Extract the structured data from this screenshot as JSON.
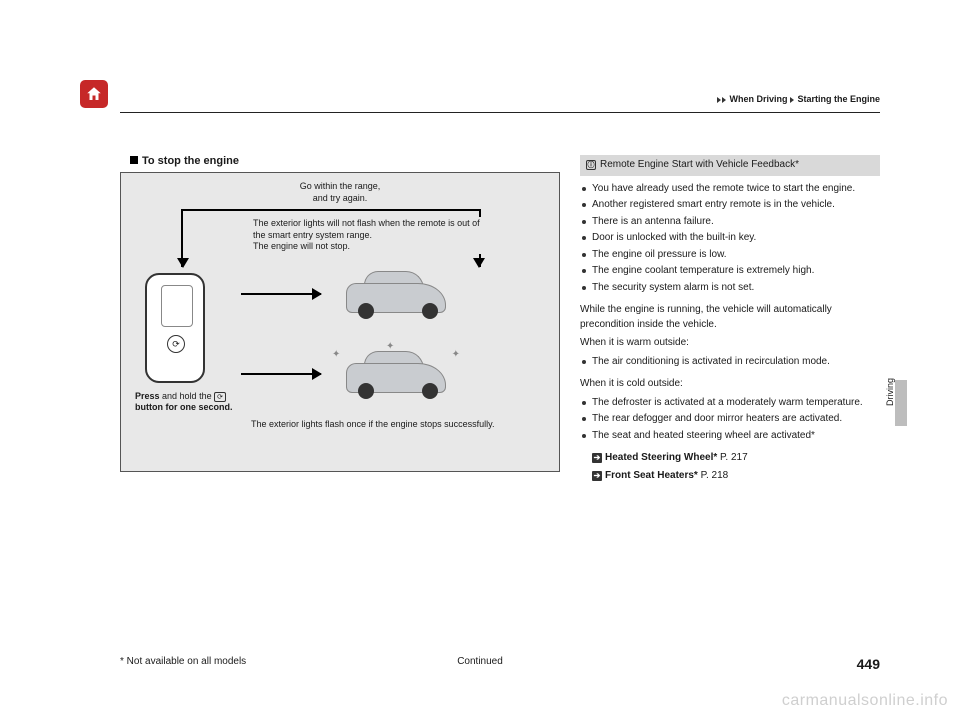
{
  "breadcrumb": {
    "seg1": "When Driving",
    "seg2": "Starting the Engine"
  },
  "section": {
    "title": "To stop the engine"
  },
  "diagram": {
    "top_label_l1": "Go within the range,",
    "top_label_l2": "and try again.",
    "mid_label_l1": "The exterior lights will not flash when the remote is out of",
    "mid_label_l2": "the smart entry system range.",
    "mid_label_l3": "The engine will not stop.",
    "press_l1": "Press",
    "press_l2": " and hold the ",
    "press_l3": " button for one second.",
    "bottom_label": "The exterior lights flash once if the engine stops successfully.",
    "bg_color": "#e8e8e8"
  },
  "info": {
    "head_icon": "ⓘ",
    "head_text": "Remote Engine Start with Vehicle Feedback*",
    "bullets_a": [
      "You have already used the remote twice to start the engine.",
      "Another registered smart entry remote is in the vehicle.",
      "There is an antenna failure.",
      "Door is unlocked with the built-in key.",
      "The engine oil pressure is low.",
      "The engine coolant temperature is extremely high.",
      "The security system alarm is not set."
    ],
    "para1": "While the engine is running, the vehicle will automatically precondition inside the vehicle.",
    "warm_head": "When it is warm outside:",
    "bullets_warm": [
      "The air conditioning is activated in recirculation mode."
    ],
    "cold_head": "When it is cold outside:",
    "bullets_cold": [
      "The defroster is activated at a moderately warm temperature.",
      "The rear defogger and door mirror heaters are activated.",
      "The seat and heated steering wheel are activated*"
    ],
    "refs": [
      {
        "label": "Heated Steering Wheel*",
        "page": "P. 217"
      },
      {
        "label": "Front Seat Heaters*",
        "page": "P. 218"
      }
    ]
  },
  "side_tab": "Driving",
  "footer": {
    "note": "* Not available on all models",
    "continued": "Continued",
    "page": "449"
  },
  "watermark": "carmanualsonline.info"
}
